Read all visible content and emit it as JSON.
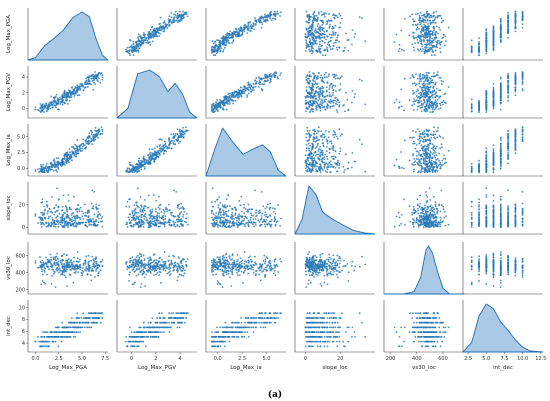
{
  "figure": {
    "caption": "(a)",
    "colors": {
      "marker": "#2a7ab8",
      "kde_fill": "#a9c9e6",
      "kde_line": "#1f6fb0",
      "axis": "#444444"
    }
  },
  "chart_data": {
    "type": "scatter",
    "subtype": "pairplot",
    "diag_kind": "kde",
    "grid": false,
    "variables": [
      {
        "key": "pga",
        "axis_label": "Log_Max_PGA",
        "range": [
          -0.8,
          7.8
        ],
        "ticks": [
          "0.0",
          "2.5",
          "5.0",
          "7.5"
        ],
        "tick_values": [
          0,
          2.5,
          5,
          7.5
        ]
      },
      {
        "key": "pgv",
        "axis_label": "Log_Max_PGV",
        "range": [
          -1.2,
          5.4
        ],
        "ticks": [
          "0",
          "2",
          "4"
        ],
        "tick_values": [
          0,
          2,
          4
        ]
      },
      {
        "key": "ia",
        "axis_label": "Log_Max_ia",
        "range": [
          -1.2,
          7
        ],
        "ticks": [
          "0.0",
          "2.5",
          "5.0"
        ],
        "tick_values": [
          0,
          2.5,
          5
        ]
      },
      {
        "key": "slope",
        "axis_label": "slope_loc",
        "range": [
          -6,
          40
        ],
        "ticks": [
          "0",
          "20"
        ],
        "tick_values": [
          0,
          20
        ]
      },
      {
        "key": "vs30",
        "axis_label": "vs30_loc",
        "range": [
          150,
          760
        ],
        "ticks": [
          "200",
          "400",
          "600"
        ],
        "tick_values": [
          200,
          400,
          600
        ]
      },
      {
        "key": "int",
        "axis_label": "int_dec",
        "range": [
          1.8,
          12.8
        ],
        "ticks": [
          "2.5",
          "5.0",
          "7.5",
          "10.0",
          "12.5"
        ],
        "tick_values": [
          2.5,
          5,
          7.5,
          10,
          12.5
        ]
      }
    ],
    "y_axis_labels": [
      "Log_Max_PGA",
      "Log_Max_PGV",
      "Log_Max_ia",
      "slope_loc",
      "vs30_loc",
      "int_dec"
    ],
    "x_axis_labels": [
      "Log_Max_PGA",
      "Log_Max_PGV",
      "Log_Max_ia",
      "slope_loc",
      "vs30_loc",
      "int_dec"
    ],
    "y_ticks": [
      [],
      [
        "0",
        "2",
        "4"
      ],
      [
        "0.0",
        "2.5",
        "5.0"
      ],
      [
        "0",
        "20"
      ],
      [
        "200",
        "400",
        "600"
      ],
      [
        "4",
        "6",
        "8",
        "10"
      ]
    ],
    "y_tick_values": [
      [],
      [
        0,
        2,
        4
      ],
      [
        0,
        2.5,
        5
      ],
      [
        0,
        20
      ],
      [
        200,
        400,
        600
      ],
      [
        4,
        6,
        8,
        10
      ]
    ],
    "n_points": 320,
    "kde": {
      "pga": [
        [
          -0.8,
          0.0
        ],
        [
          0,
          0.05
        ],
        [
          1,
          0.3
        ],
        [
          2,
          0.45
        ],
        [
          3,
          0.62
        ],
        [
          4,
          0.88
        ],
        [
          5,
          1.0
        ],
        [
          5.8,
          0.9
        ],
        [
          6.5,
          0.45
        ],
        [
          7.2,
          0.1
        ],
        [
          7.8,
          0.0
        ]
      ],
      "pgv": [
        [
          -1.2,
          0.0
        ],
        [
          -0.3,
          0.2
        ],
        [
          0.5,
          0.92
        ],
        [
          1.5,
          1.0
        ],
        [
          2.3,
          0.86
        ],
        [
          3.0,
          0.55
        ],
        [
          3.6,
          0.72
        ],
        [
          4.2,
          0.5
        ],
        [
          4.8,
          0.12
        ],
        [
          5.4,
          0.0
        ]
      ],
      "ia": [
        [
          -1.2,
          0.0
        ],
        [
          -0.4,
          0.5
        ],
        [
          0.5,
          1.0
        ],
        [
          1.5,
          0.72
        ],
        [
          2.6,
          0.45
        ],
        [
          3.5,
          0.55
        ],
        [
          4.6,
          0.65
        ],
        [
          5.4,
          0.5
        ],
        [
          6.2,
          0.12
        ],
        [
          7,
          0.0
        ]
      ],
      "slope": [
        [
          -6,
          0.0
        ],
        [
          -2,
          0.3
        ],
        [
          2,
          1.0
        ],
        [
          6,
          0.82
        ],
        [
          10,
          0.45
        ],
        [
          16,
          0.3
        ],
        [
          22,
          0.18
        ],
        [
          28,
          0.07
        ],
        [
          34,
          0.02
        ],
        [
          40,
          0.0
        ]
      ],
      "vs30": [
        [
          150,
          0.0
        ],
        [
          300,
          0.0
        ],
        [
          380,
          0.05
        ],
        [
          430,
          0.35
        ],
        [
          470,
          0.92
        ],
        [
          490,
          1.0
        ],
        [
          520,
          0.85
        ],
        [
          560,
          0.45
        ],
        [
          600,
          0.12
        ],
        [
          650,
          0.0
        ],
        [
          760,
          0.0
        ]
      ],
      "int": [
        [
          1.8,
          0.0
        ],
        [
          3,
          0.2
        ],
        [
          4,
          0.75
        ],
        [
          5,
          1.0
        ],
        [
          6,
          0.9
        ],
        [
          7,
          0.62
        ],
        [
          8,
          0.45
        ],
        [
          9,
          0.25
        ],
        [
          10,
          0.1
        ],
        [
          11,
          0.02
        ],
        [
          12.8,
          0.0
        ]
      ]
    }
  }
}
